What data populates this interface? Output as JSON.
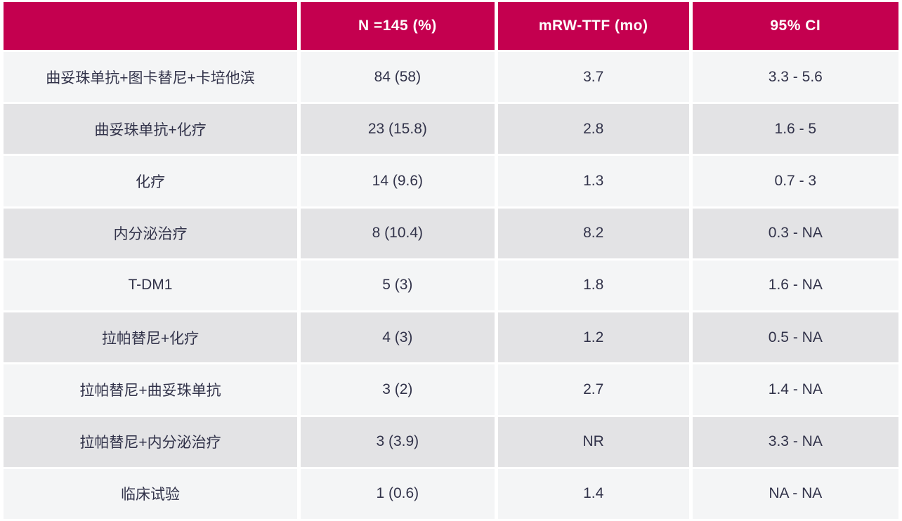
{
  "colors": {
    "header_bg": "#c4004f",
    "header_text": "#ffffff",
    "row_light_bg": "#f4f5f6",
    "row_dark_bg": "#e3e3e5",
    "body_text": "#32334a",
    "grid_line": "#ffffff"
  },
  "table": {
    "columns": {
      "treatment": "",
      "n": "N =145 (%)",
      "mrw_ttf": "mRW-TTF (mo)",
      "ci": "95% CI"
    },
    "rows": [
      {
        "treatment": "曲妥珠单抗+图卡替尼+卡培他滨",
        "n": "84 (58)",
        "mrw_ttf": "3.7",
        "ci": "3.3 - 5.6"
      },
      {
        "treatment": "曲妥珠单抗+化疗",
        "n": "23 (15.8)",
        "mrw_ttf": "2.8",
        "ci": "1.6 - 5"
      },
      {
        "treatment": "化疗",
        "n": "14 (9.6)",
        "mrw_ttf": "1.3",
        "ci": "0.7 - 3"
      },
      {
        "treatment": "内分泌治疗",
        "n": "8 (10.4)",
        "mrw_ttf": "8.2",
        "ci": "0.3 - NA"
      },
      {
        "treatment": "T-DM1",
        "n": "5 (3)",
        "mrw_ttf": "1.8",
        "ci": "1.6 - NA"
      },
      {
        "treatment": "拉帕替尼+化疗",
        "n": "4 (3)",
        "mrw_ttf": "1.2",
        "ci": "0.5 - NA"
      },
      {
        "treatment": "拉帕替尼+曲妥珠单抗",
        "n": "3 (2)",
        "mrw_ttf": "2.7",
        "ci": "1.4 - NA"
      },
      {
        "treatment": "拉帕替尼+内分泌治疗",
        "n": "3 (3.9)",
        "mrw_ttf": "NR",
        "ci": "3.3 - NA"
      },
      {
        "treatment": "临床试验",
        "n": "1 (0.6)",
        "mrw_ttf": "1.4",
        "ci": "NA - NA"
      }
    ]
  },
  "chart_data": {
    "type": "table",
    "title": "",
    "columns": [
      "",
      "N =145 (%)",
      "mRW-TTF (mo)",
      "95% CI"
    ],
    "rows": [
      [
        "曲妥珠单抗+图卡替尼+卡培他滨",
        "84 (58)",
        "3.7",
        "3.3 - 5.6"
      ],
      [
        "曲妥珠单抗+化疗",
        "23 (15.8)",
        "2.8",
        "1.6 - 5"
      ],
      [
        "化疗",
        "14 (9.6)",
        "1.3",
        "0.7 - 3"
      ],
      [
        "内分泌治疗",
        "8 (10.4)",
        "8.2",
        "0.3 - NA"
      ],
      [
        "T-DM1",
        "5 (3)",
        "1.8",
        "1.6 - NA"
      ],
      [
        "拉帕替尼+化疗",
        "4 (3)",
        "1.2",
        "0.5 - NA"
      ],
      [
        "拉帕替尼+曲妥珠单抗",
        "3 (2)",
        "2.7",
        "1.4 - NA"
      ],
      [
        "拉帕替尼+内分泌治疗",
        "3 (3.9)",
        "NR",
        "3.3 - NA"
      ],
      [
        "临床试验",
        "1 (0.6)",
        "1.4",
        "NA - NA"
      ]
    ]
  }
}
